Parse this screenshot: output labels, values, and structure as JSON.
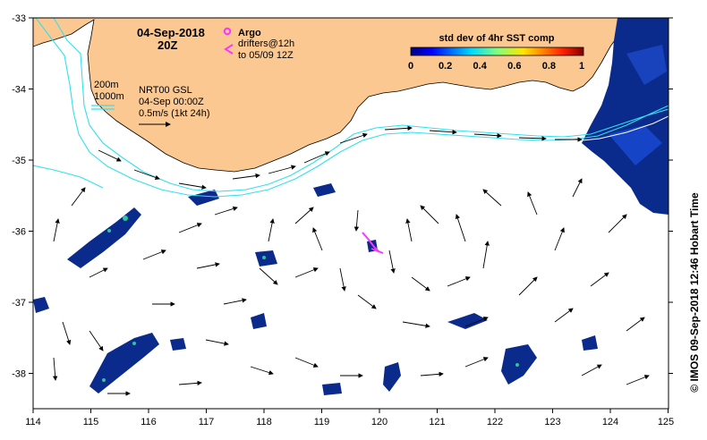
{
  "map": {
    "date_title": "04-Sep-2018",
    "time_title": "20Z",
    "argo_label": "Argo",
    "drifters_line1": "drifters@12h",
    "drifters_line2": "to 05/09 12Z",
    "contour_200": "200m",
    "contour_1000": "1000m",
    "product_line1": "NRT00 GSL",
    "product_line2": "04-Sep 00:00Z",
    "product_line3": "0.5m/s (1kt 24h)",
    "colorbar_title": "std dev of 4hr SST comp",
    "colorbar_ticks": [
      "0",
      "0.2",
      "0.4",
      "0.6",
      "0.8",
      "1"
    ],
    "x_ticks": [
      "114",
      "115",
      "116",
      "117",
      "118",
      "119",
      "120",
      "121",
      "122",
      "123",
      "124",
      "125"
    ],
    "y_ticks": [
      "-33",
      "-34",
      "-35",
      "-36",
      "-37",
      "-38"
    ],
    "credit": "© IMOS 09-Sep-2018 12:46 Hobart Time",
    "colors": {
      "land": "#fcc892",
      "contour": "#33e0ee",
      "argo": "#ff33ff",
      "sst_high": "#0a2a8c"
    }
  }
}
